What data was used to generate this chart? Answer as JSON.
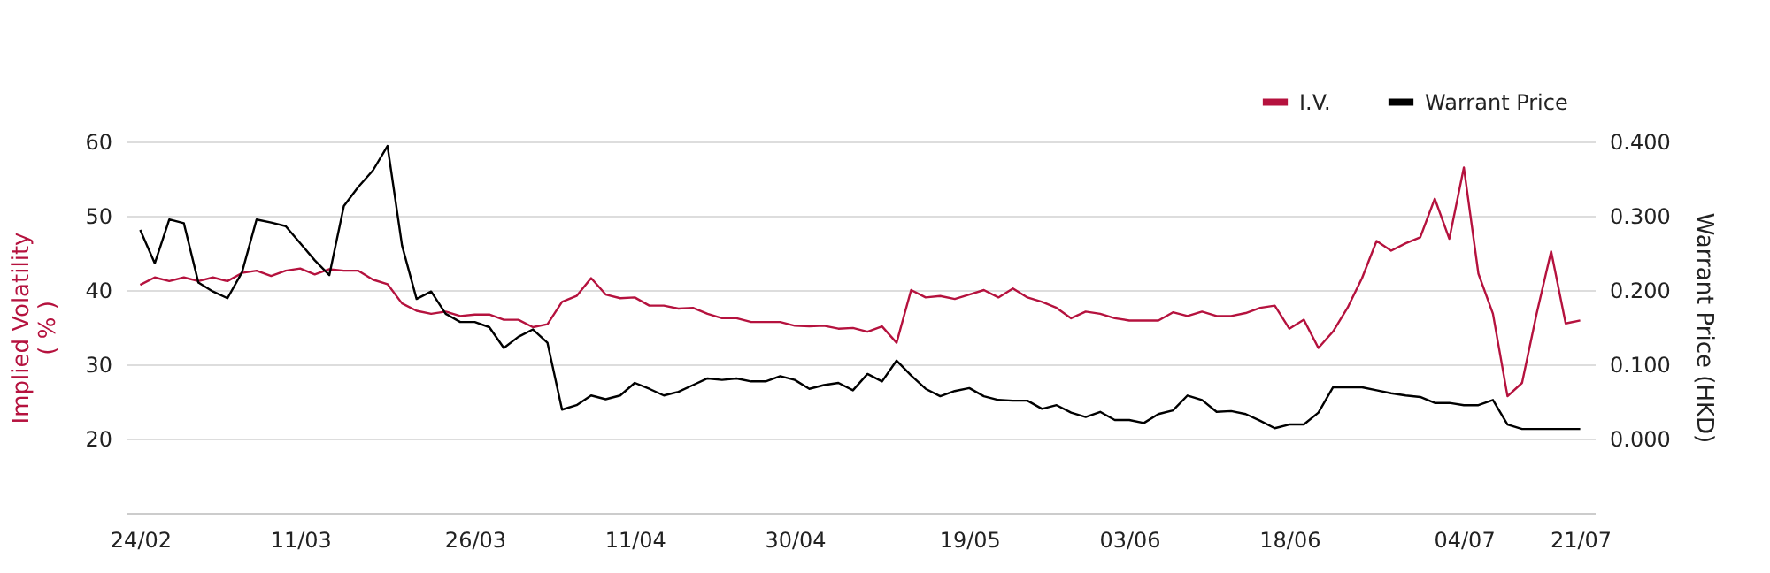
{
  "chart_data": {
    "type": "line",
    "categories": [
      "24/02",
      null,
      null,
      null,
      null,
      null,
      null,
      null,
      null,
      null,
      null,
      "11/03",
      null,
      null,
      null,
      null,
      null,
      null,
      null,
      null,
      null,
      null,
      null,
      "26/03",
      null,
      null,
      null,
      null,
      null,
      null,
      null,
      null,
      null,
      null,
      "11/04",
      null,
      null,
      null,
      null,
      null,
      null,
      null,
      null,
      null,
      null,
      "30/04",
      null,
      null,
      null,
      null,
      null,
      null,
      null,
      null,
      null,
      null,
      null,
      "19/05",
      null,
      null,
      null,
      null,
      null,
      null,
      null,
      null,
      null,
      null,
      "03/06",
      null,
      null,
      null,
      null,
      null,
      null,
      null,
      null,
      null,
      null,
      "18/06",
      null,
      null,
      null,
      null,
      null,
      null,
      null,
      null,
      null,
      null,
      null,
      "04/07",
      null,
      null,
      null,
      null,
      null,
      null,
      null,
      "21/07"
    ],
    "series": [
      {
        "name": "I.V.",
        "color": "#b5123e",
        "values": [
          40.7,
          41.7,
          41.2,
          41.7,
          41.2,
          41.7,
          41.2,
          42.3,
          42.6,
          41.9,
          42.6,
          42.9,
          42.1,
          42.8,
          42.6,
          42.6,
          41.4,
          40.8,
          38.2,
          37.2,
          36.8,
          37.1,
          36.5,
          36.7,
          36.7,
          36.0,
          36.0,
          35.0,
          35.4,
          38.4,
          39.2,
          41.6,
          39.4,
          38.9,
          39.0,
          37.9,
          37.9,
          37.5,
          37.6,
          36.8,
          36.2,
          36.2,
          35.7,
          35.7,
          35.7,
          35.2,
          35.1,
          35.2,
          34.8,
          34.9,
          34.4,
          35.1,
          32.9,
          40.0,
          39.0,
          39.2,
          38.8,
          39.4,
          40.0,
          39.0,
          40.2,
          39.0,
          38.4,
          37.6,
          36.2,
          37.1,
          36.8,
          36.2,
          35.9,
          35.9,
          35.9,
          37.0,
          36.5,
          37.1,
          36.5,
          36.5,
          36.9,
          37.6,
          37.9,
          34.8,
          36.0,
          32.2,
          34.4,
          37.6,
          41.6,
          46.6,
          45.3,
          46.3,
          47.1,
          52.3,
          46.9,
          56.5,
          42.2,
          36.8,
          25.7,
          27.5,
          36.8,
          45.2,
          35.5,
          35.9
        ]
      },
      {
        "name": "Warrant Price",
        "color": "#000000",
        "axis": "y2",
        "values": [
          0.281,
          0.236,
          0.295,
          0.29,
          0.21,
          0.198,
          0.189,
          0.224,
          0.295,
          0.291,
          0.286,
          0.263,
          0.24,
          0.22,
          0.313,
          0.339,
          0.361,
          0.394,
          0.26,
          0.188,
          0.198,
          0.168,
          0.157,
          0.157,
          0.15,
          0.122,
          0.137,
          0.147,
          0.129,
          0.039,
          0.045,
          0.058,
          0.053,
          0.058,
          0.075,
          0.067,
          0.058,
          0.063,
          0.072,
          0.081,
          0.079,
          0.081,
          0.077,
          0.077,
          0.084,
          0.079,
          0.067,
          0.072,
          0.075,
          0.065,
          0.087,
          0.077,
          0.105,
          0.085,
          0.067,
          0.057,
          0.064,
          0.068,
          0.057,
          0.052,
          0.051,
          0.051,
          0.04,
          0.045,
          0.035,
          0.029,
          0.036,
          0.025,
          0.025,
          0.021,
          0.033,
          0.038,
          0.058,
          0.052,
          0.036,
          0.037,
          0.033,
          0.024,
          0.014,
          0.019,
          0.019,
          0.035,
          0.069,
          0.069,
          0.069,
          0.065,
          0.061,
          0.058,
          0.056,
          0.048,
          0.048,
          0.045,
          0.045,
          0.052,
          0.019,
          0.013,
          0.013,
          0.013,
          0.013,
          0.013
        ]
      }
    ],
    "ylabel": "Implied Volatility\n( % )",
    "y2label": "Warrant Price (HKD)",
    "ylim": [
      10,
      60
    ],
    "yticks": [
      20,
      30,
      40,
      50,
      60
    ],
    "y2lim": [
      -0.1,
      0.4
    ],
    "y2ticks": [
      {
        "value": 0,
        "label": "0.000"
      },
      {
        "value": 0.1,
        "label": "0.100"
      },
      {
        "value": 0.2,
        "label": "0.200"
      },
      {
        "value": 0.3,
        "label": "0.300"
      },
      {
        "value": 0.4,
        "label": "0.400"
      }
    ],
    "grid": "y",
    "legend": "top right",
    "marker": "none",
    "line_style": "solid"
  }
}
